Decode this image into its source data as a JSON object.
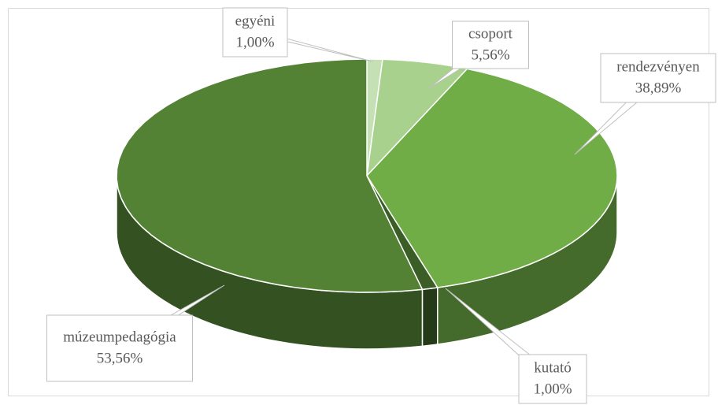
{
  "chart_data": {
    "type": "pie3d",
    "categories": [
      "egyéni",
      "csoport",
      "rendezvényen",
      "kutató",
      "múzeumpedagógia"
    ],
    "values": [
      1.0,
      5.56,
      38.89,
      1.0,
      53.56
    ],
    "value_labels": [
      "1,00%",
      "5,56%",
      "38,89%",
      "1,00%",
      "53,56%"
    ],
    "colors": [
      "#c5e0b4",
      "#a9d18e",
      "#70ad47",
      "#3b5e26",
      "#548235"
    ]
  }
}
